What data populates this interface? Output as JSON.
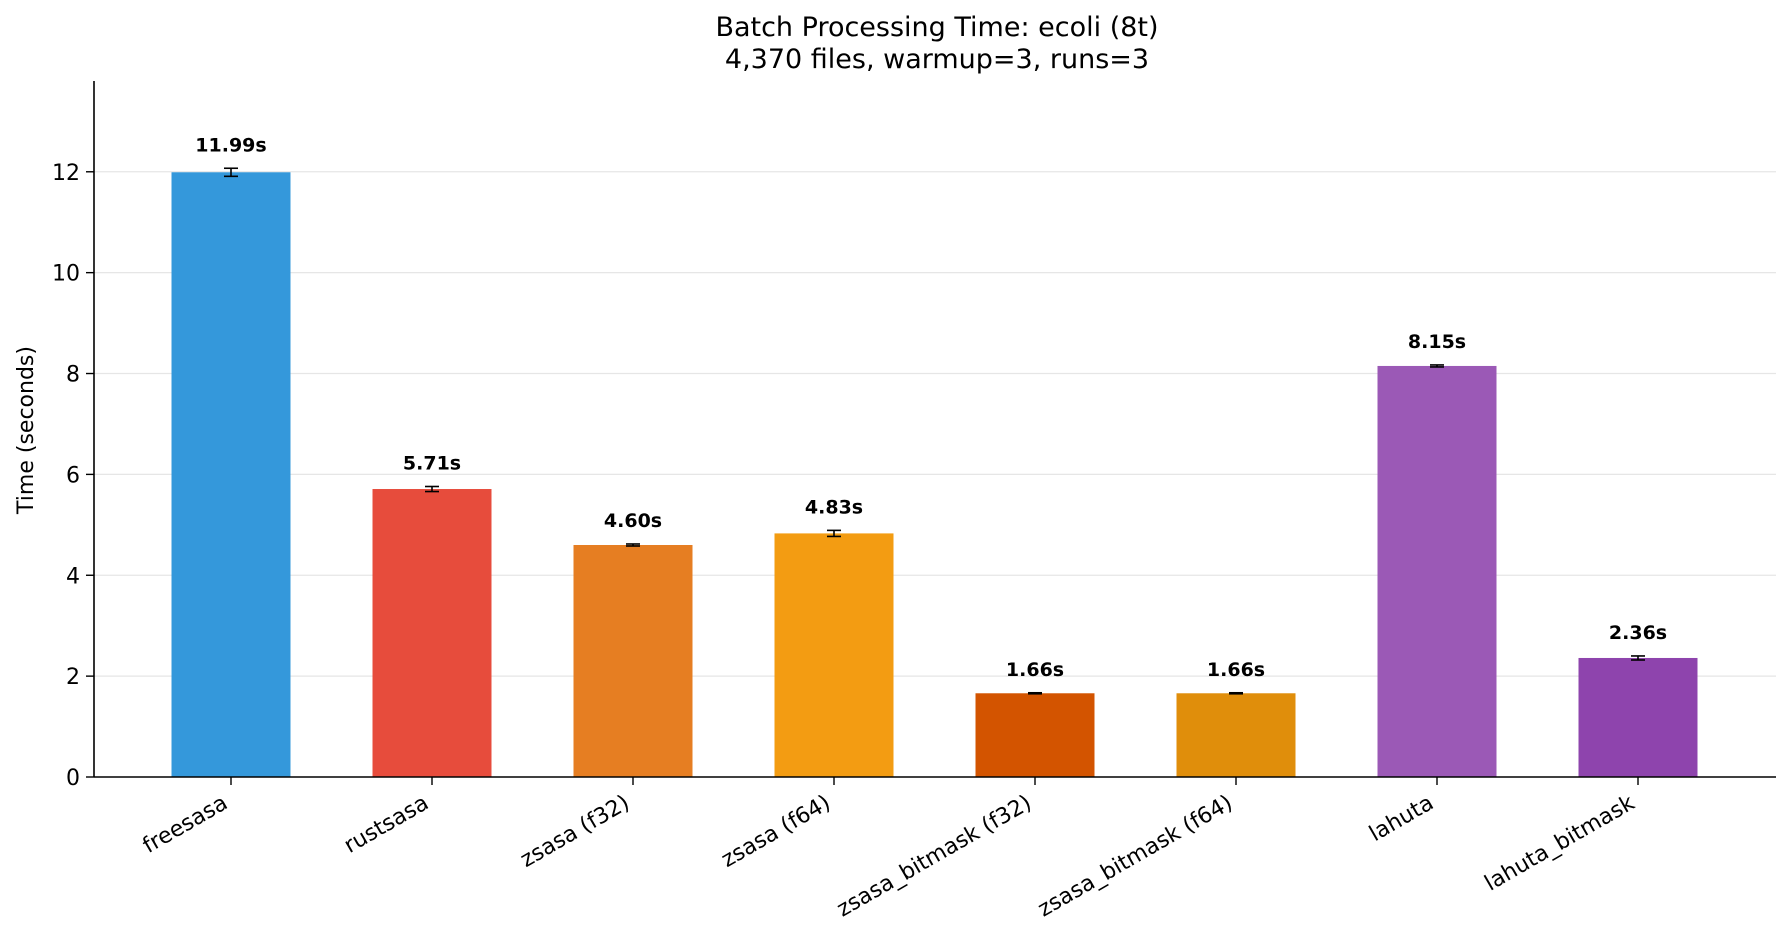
{
  "chart_data": {
    "type": "bar",
    "title": "Batch Processing Time: ecoli (8t)",
    "subtitle": "4,370 files, warmup=3, runs=3",
    "xlabel": "",
    "ylabel": "Time (seconds)",
    "ylim": [
      0,
      13.8
    ],
    "yticks": [
      0,
      2,
      4,
      6,
      8,
      10,
      12
    ],
    "grid": "horizontal",
    "categories": [
      "freesasa",
      "rustsasa",
      "zsasa (f32)",
      "zsasa (f64)",
      "zsasa_bitmask (f32)",
      "zsasa_bitmask (f64)",
      "lahuta",
      "lahuta_bitmask"
    ],
    "values": [
      11.99,
      5.71,
      4.6,
      4.83,
      1.66,
      1.66,
      8.15,
      2.36
    ],
    "errors": [
      0.08,
      0.05,
      0.02,
      0.06,
      0.01,
      0.01,
      0.02,
      0.04
    ],
    "value_labels": [
      "11.99s",
      "5.71s",
      "4.60s",
      "4.83s",
      "1.66s",
      "1.66s",
      "8.15s",
      "2.36s"
    ],
    "colors": [
      "#3498db",
      "#e74c3c",
      "#e67e22",
      "#f39c12",
      "#d35400",
      "#e08e0b",
      "#9b59b6",
      "#8e44ad"
    ]
  }
}
